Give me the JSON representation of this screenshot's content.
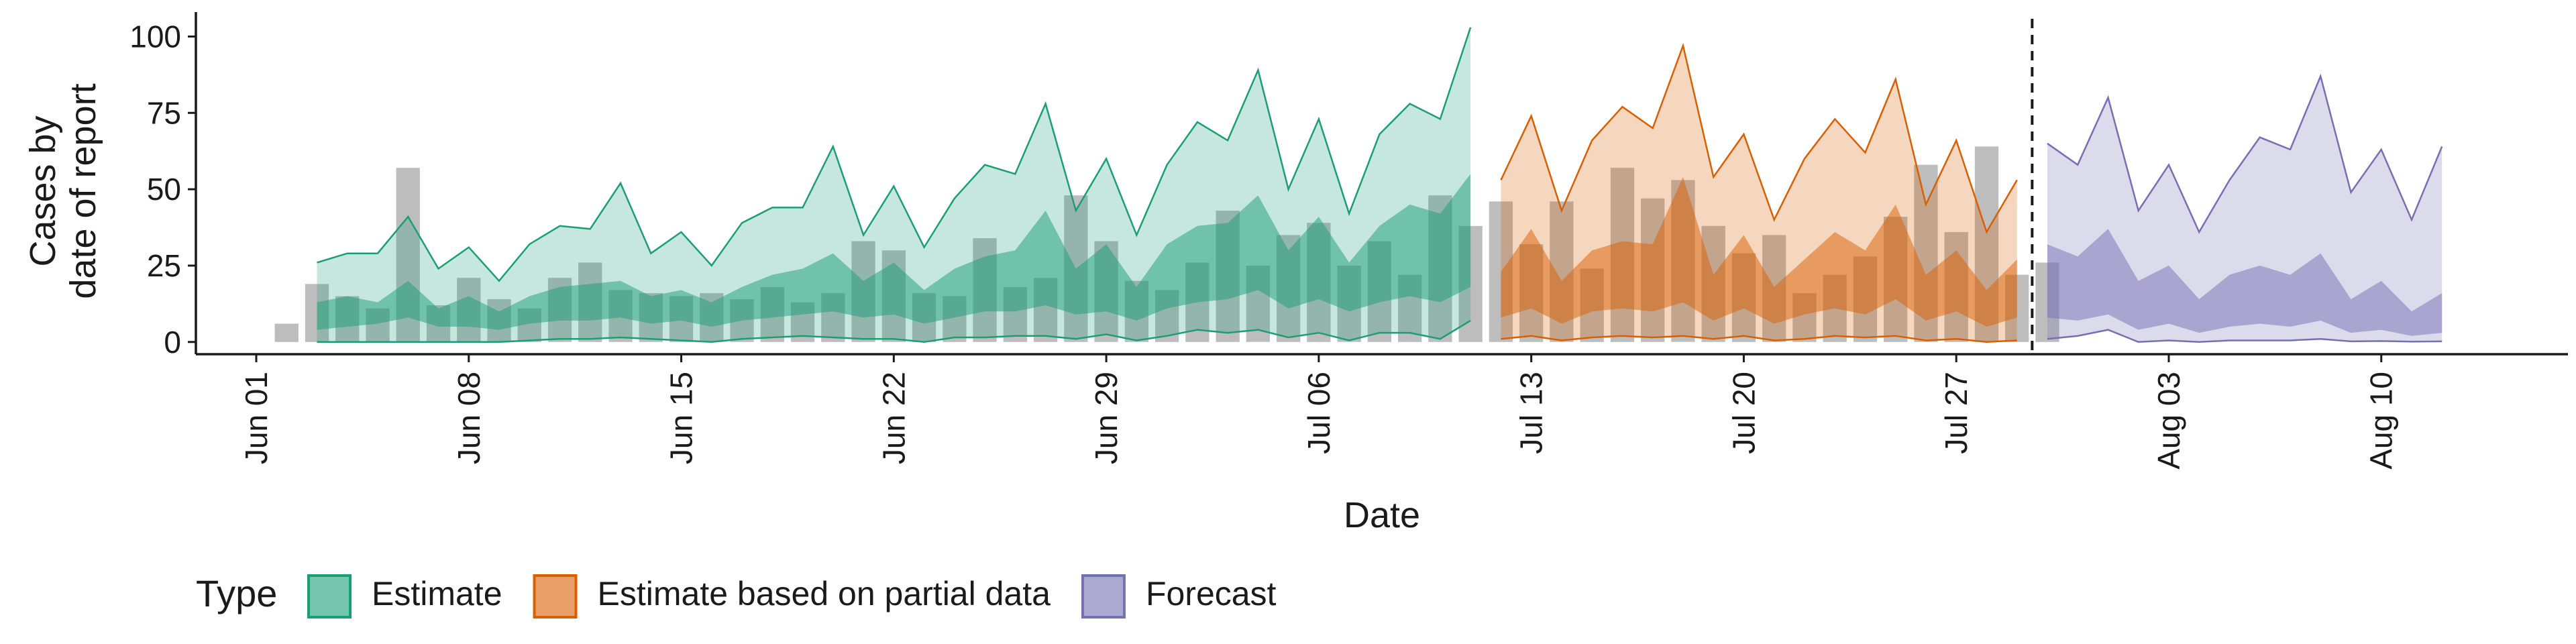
{
  "chart_data": {
    "type": "area",
    "xlabel": "Date",
    "ylabel_lines": [
      "Cases by",
      "date of report"
    ],
    "x_start_date": "2020-06-01",
    "x_end_date": "2020-08-15",
    "x_ticks": [
      {
        "date": "2020-06-01",
        "label": "Jun 01"
      },
      {
        "date": "2020-06-08",
        "label": "Jun 08"
      },
      {
        "date": "2020-06-15",
        "label": "Jun 15"
      },
      {
        "date": "2020-06-22",
        "label": "Jun 22"
      },
      {
        "date": "2020-06-29",
        "label": "Jun 29"
      },
      {
        "date": "2020-07-06",
        "label": "Jul 06"
      },
      {
        "date": "2020-07-13",
        "label": "Jul 13"
      },
      {
        "date": "2020-07-20",
        "label": "Jul 20"
      },
      {
        "date": "2020-07-27",
        "label": "Jul 27"
      },
      {
        "date": "2020-08-03",
        "label": "Aug 03"
      },
      {
        "date": "2020-08-10",
        "label": "Aug 10"
      }
    ],
    "y_ticks": [
      {
        "value": 0,
        "label": "0"
      },
      {
        "value": 25,
        "label": "25"
      },
      {
        "value": 50,
        "label": "50"
      },
      {
        "value": 75,
        "label": "75"
      },
      {
        "value": 100,
        "label": "100"
      }
    ],
    "ylim": [
      -4,
      108
    ],
    "forecast_date": "2020-07-29",
    "bars_start_date": "2020-06-02",
    "observed_cases": [
      6,
      19,
      15,
      11,
      57,
      12,
      21,
      14,
      11,
      21,
      26,
      17,
      16,
      15,
      16,
      14,
      18,
      13,
      16,
      33,
      30,
      16,
      15,
      34,
      18,
      21,
      48,
      33,
      20,
      17,
      26,
      43,
      25,
      35,
      39,
      25,
      33,
      22,
      48,
      38,
      46,
      32,
      46,
      24,
      57,
      47,
      53,
      38,
      29,
      35,
      16,
      22,
      28,
      41,
      58,
      36,
      64,
      22,
      26
    ],
    "series": [
      {
        "name": "Estimate",
        "color": "#1b9e77",
        "start_date": "2020-06-03",
        "upper90": [
          26,
          29,
          29,
          41,
          24,
          31,
          20,
          32,
          38,
          37,
          52,
          29,
          36,
          25,
          39,
          44,
          44,
          64,
          35,
          51,
          31,
          47,
          58,
          55,
          78,
          43,
          60,
          35,
          58,
          72,
          66,
          89,
          50,
          73,
          42,
          68,
          78,
          73,
          103
        ],
        "upper50": [
          13,
          15,
          13,
          20,
          11,
          15,
          10,
          15,
          18,
          19,
          20,
          15,
          17,
          13,
          18,
          22,
          24,
          29,
          20,
          26,
          17,
          24,
          28,
          30,
          43,
          24,
          32,
          18,
          32,
          38,
          39,
          48,
          30,
          41,
          26,
          38,
          45,
          42,
          55
        ],
        "lower50": [
          4,
          5,
          6,
          8,
          5,
          5,
          4,
          6,
          7,
          7,
          8,
          6,
          7,
          5,
          7,
          8,
          9,
          10,
          8,
          9,
          6,
          8,
          10,
          10,
          12,
          9,
          10,
          7,
          11,
          13,
          14,
          17,
          11,
          14,
          10,
          13,
          15,
          13,
          18
        ],
        "lower90": [
          0,
          0,
          0,
          0,
          0,
          0,
          0,
          0.5,
          1,
          1,
          1.5,
          1,
          0.5,
          0,
          1,
          1.5,
          2,
          1.5,
          1,
          1,
          0,
          1.5,
          1.5,
          2,
          2,
          1,
          2.5,
          0.5,
          2,
          4,
          3,
          4,
          1.5,
          3,
          0.5,
          3,
          3,
          1,
          7
        ]
      },
      {
        "name": "Estimate based on partial data",
        "color": "#d95f02",
        "start_date": "2020-07-12",
        "upper90": [
          53,
          74,
          43,
          66,
          77,
          70,
          97,
          54,
          68,
          40,
          60,
          73,
          62,
          86,
          45,
          66,
          36,
          53
        ],
        "upper50": [
          23,
          37,
          20,
          30,
          33,
          32,
          54,
          22,
          35,
          18,
          27,
          36,
          30,
          45,
          22,
          30,
          17,
          27
        ],
        "lower50": [
          8,
          11,
          6,
          10,
          11,
          10,
          13,
          7,
          11,
          6,
          9,
          11,
          9,
          14,
          7,
          10,
          5,
          8
        ],
        "lower90": [
          1,
          2,
          0.5,
          1.5,
          2,
          1.5,
          2,
          1,
          2,
          0.5,
          1,
          2,
          1.5,
          2,
          0.5,
          1,
          0,
          0.5
        ]
      },
      {
        "name": "Forecast",
        "color": "#7570b3",
        "start_date": "2020-07-30",
        "upper90": [
          65,
          58,
          80,
          43,
          58,
          36,
          53,
          67,
          63,
          87,
          49,
          63,
          40,
          64
        ],
        "upper50": [
          32,
          28,
          37,
          20,
          25,
          14,
          22,
          25,
          22,
          29,
          14,
          20,
          10,
          16
        ],
        "lower50": [
          8,
          7,
          9,
          4,
          6,
          3,
          5,
          6,
          5,
          7,
          3,
          4,
          2,
          3
        ],
        "lower90": [
          1,
          2,
          4,
          0,
          0.5,
          0,
          0.5,
          0.5,
          0.5,
          1,
          0.2,
          0.3,
          0.1,
          0.2
        ]
      }
    ],
    "legend": {
      "title": "Type",
      "items": [
        {
          "label": "Estimate",
          "color": "#1b9e77"
        },
        {
          "label": "Estimate based on partial data",
          "color": "#d95f02"
        },
        {
          "label": "Forecast",
          "color": "#7570b3"
        }
      ]
    }
  }
}
